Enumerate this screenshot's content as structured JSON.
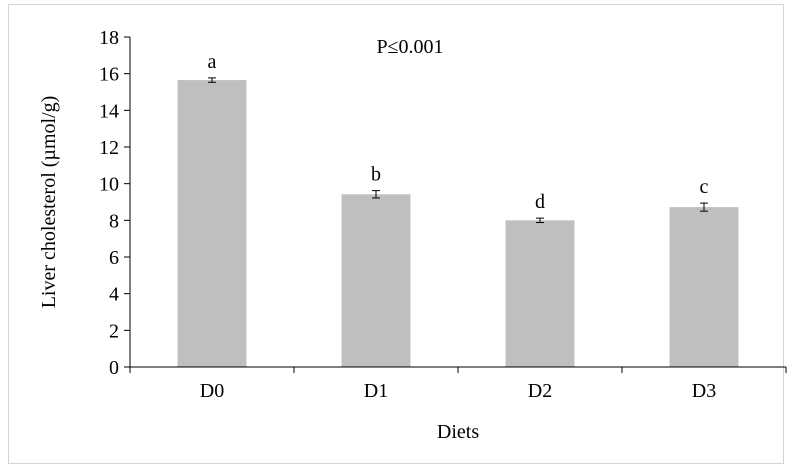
{
  "chart_data": {
    "type": "bar",
    "title": "",
    "annotation": "P≤0.001",
    "xlabel": "Diets",
    "ylabel": "Liver cholesterol (µmol/g)",
    "categories": [
      "D0",
      "D1",
      "D2",
      "D3"
    ],
    "values": [
      15.65,
      9.42,
      8.0,
      8.72
    ],
    "errors": [
      0.12,
      0.2,
      0.12,
      0.22
    ],
    "significance_letters": [
      "a",
      "b",
      "d",
      "c"
    ],
    "ylim": [
      0,
      18
    ],
    "yticks": [
      "0",
      "2",
      "4",
      "6",
      "8",
      "10",
      "12",
      "14",
      "16",
      "18"
    ],
    "grid": false,
    "legend": "none",
    "bar_color": "#bfbfbf"
  }
}
